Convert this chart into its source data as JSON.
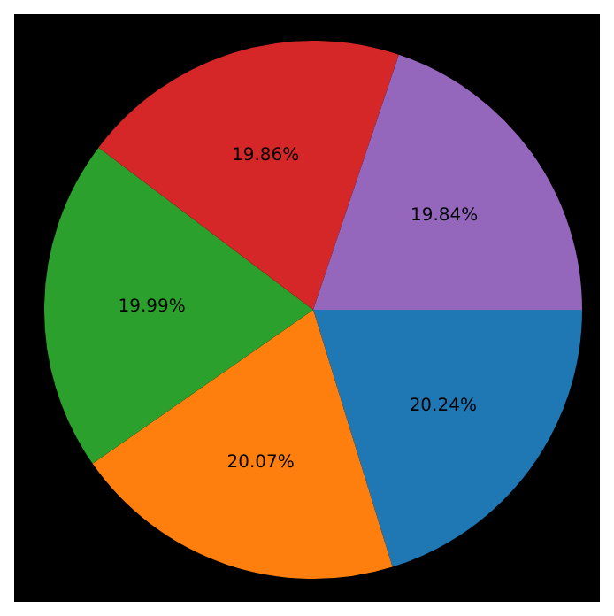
{
  "chart_data": {
    "type": "pie",
    "categories": [
      null,
      null,
      null,
      null,
      null
    ],
    "values": [
      20.24,
      20.07,
      19.99,
      19.86,
      19.84
    ],
    "value_labels": [
      "20.24%",
      "20.07%",
      "19.99%",
      "19.86%",
      "19.84%"
    ],
    "colors": [
      "#1f77b4",
      "#ff7f0e",
      "#2ca02c",
      "#d62728",
      "#9467bd"
    ],
    "legend": false
  }
}
